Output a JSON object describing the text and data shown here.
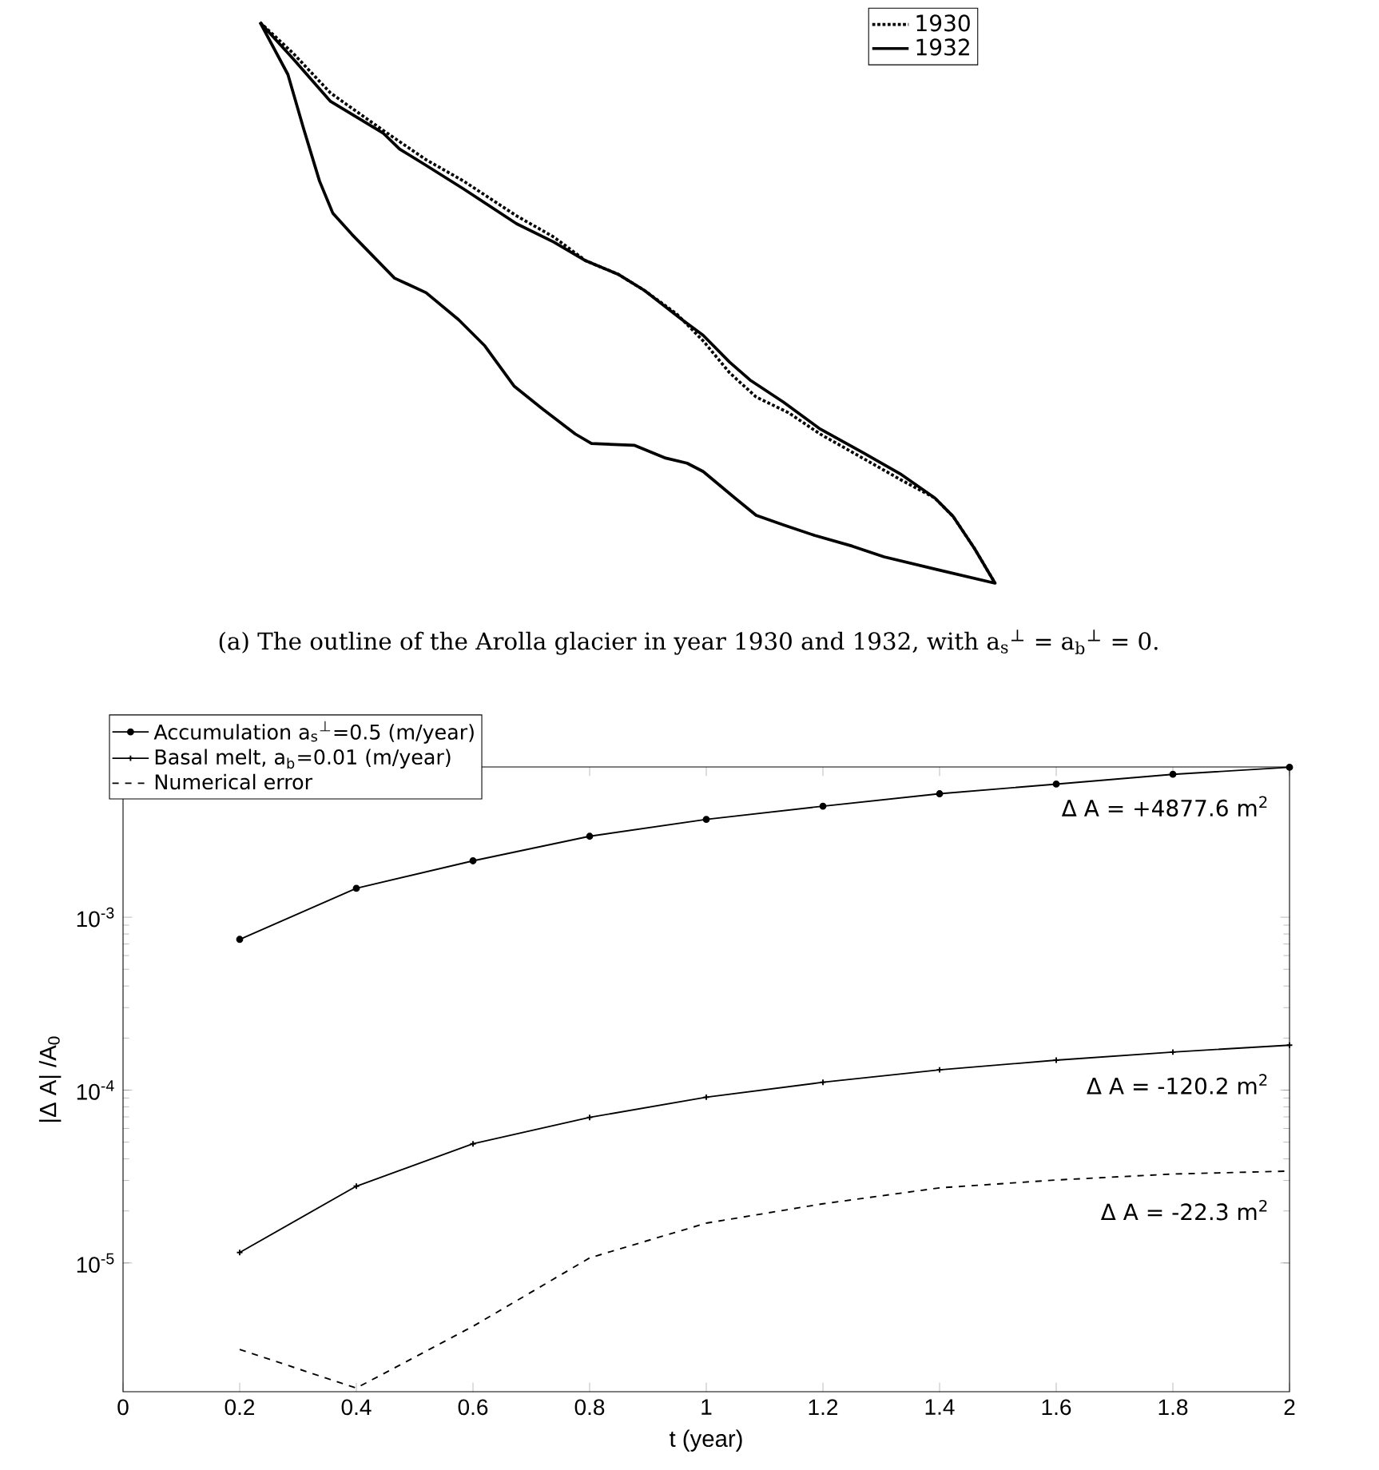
{
  "chart_data": [
    {
      "type": "other",
      "legend": "top right",
      "annotations": [
        "(a) The outline of the Arolla glacier in year 1930 and 1932, with a$_{s}$$^{⊥}$ = a$_{b}$$^{⊥}$ = 0."
      ],
      "series": [
        {
          "name": "1930",
          "color": "#000000",
          "line_style": "dotted"
        },
        {
          "name": "1932",
          "color": "#000000",
          "line_style": "solid"
        }
      ]
    },
    {
      "type": "line",
      "log": true,
      "legend": "top left",
      "grid": false,
      "xlabel": "t (year)",
      "ylabel": "|Δ A| /A$_{0}$",
      "xlim": [
        0,
        2
      ],
      "xticks": [
        0,
        0.2,
        0.4,
        0.6,
        0.8,
        1,
        1.2,
        1.4,
        1.6,
        1.8,
        2
      ],
      "ylim": [
        1.8e-06,
        0.0074
      ],
      "yticks": [
        {
          "value": 1e-05,
          "label": "10$^{-5}$"
        },
        {
          "value": 0.0001,
          "label": "10$^{-4}$"
        },
        {
          "value": 0.001,
          "label": "10$^{-3}$"
        }
      ],
      "x": [
        0.2,
        0.4,
        0.6,
        0.8,
        1,
        1.2,
        1.4,
        1.6,
        1.8,
        2
      ],
      "series": [
        {
          "name": "Accumulation a$_{s}$$^{⊥}$=0.5 (m/year)",
          "color": "#000000",
          "marker": "circle",
          "line_style": "solid",
          "values": [
            0.000745,
            0.00147,
            0.00212,
            0.00294,
            0.00368,
            0.00439,
            0.00518,
            0.00589,
            0.00671,
            0.00737
          ]
        },
        {
          "name": "Basal melt, a$_{b}$=0.01 (m/year)",
          "color": "#000000",
          "marker": "cross",
          "line_style": "solid",
          "values": [
            1.15e-05,
            2.78e-05,
            4.89e-05,
            6.95e-05,
            9.1e-05,
            0.000111,
            0.000131,
            0.000149,
            0.000166,
            0.000182
          ]
        },
        {
          "name": "Numerical error",
          "color": "#000000",
          "marker": "none",
          "line_style": "dashed",
          "values": [
            3.16e-06,
            1.89e-06,
            4.3e-06,
            1.07e-05,
            1.7e-05,
            2.2e-05,
            2.72e-05,
            3.02e-05,
            3.27e-05,
            3.4e-05
          ]
        }
      ],
      "annotations": [
        "Δ A =  +4877.6 m$^{2}$",
        "Δ A =  -120.2 m$^{2}$",
        "Δ A =  -22.3 m$^{2}$"
      ]
    }
  ]
}
